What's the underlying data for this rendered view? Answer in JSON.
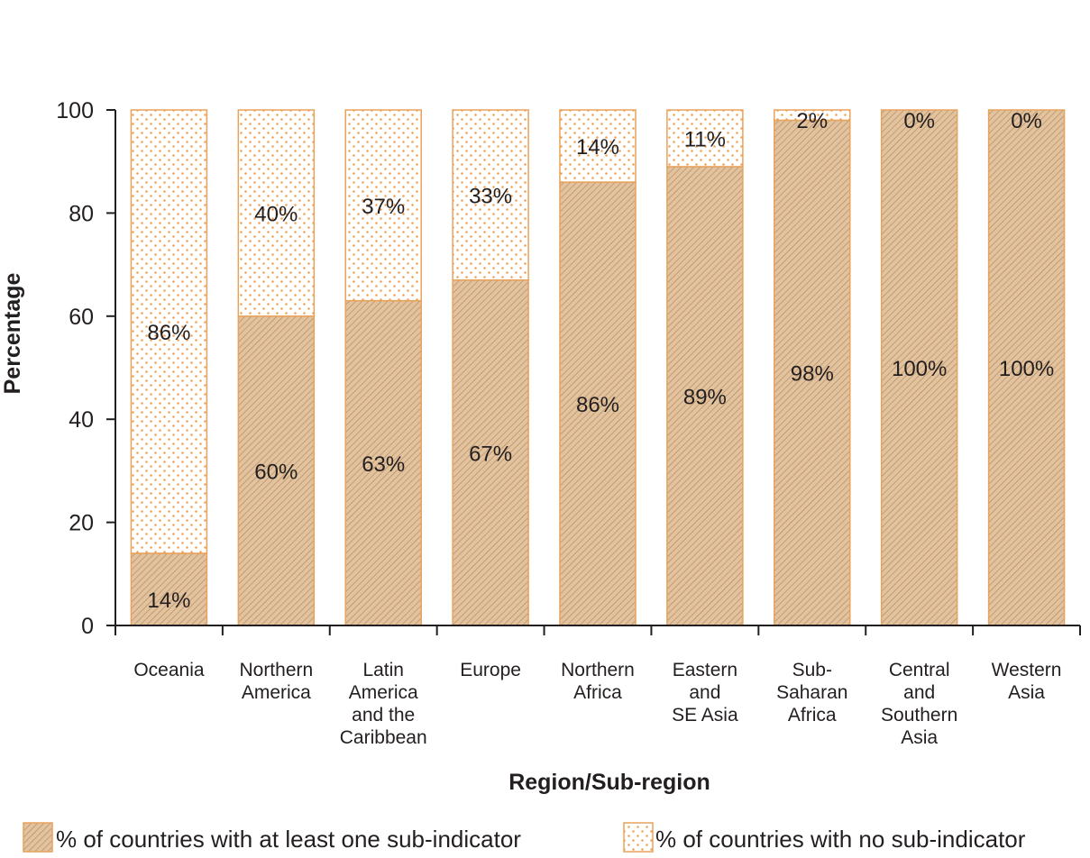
{
  "chart_data": {
    "type": "bar",
    "stacked": true,
    "title": "",
    "xlabel": "Region/Sub-region",
    "ylabel": "Percentage",
    "ylim": [
      0,
      100
    ],
    "yticks": [
      0,
      20,
      40,
      60,
      80,
      100
    ],
    "categories": [
      [
        "Oceania"
      ],
      [
        "Northern",
        "America"
      ],
      [
        "Latin",
        "America",
        "and the",
        "Caribbean"
      ],
      [
        "Europe"
      ],
      [
        "Northern",
        "Africa"
      ],
      [
        "Eastern",
        "and",
        "SE Asia"
      ],
      [
        "Sub-",
        "Saharan",
        "Africa"
      ],
      [
        "Central",
        "and",
        "Southern",
        "Asia"
      ],
      [
        "Western",
        "Asia"
      ]
    ],
    "series": [
      {
        "name": "% of countries with at least one sub-indicator",
        "values": [
          14,
          60,
          63,
          67,
          86,
          89,
          98,
          100,
          100
        ],
        "labels": [
          "14%",
          "60%",
          "63%",
          "67%",
          "86%",
          "89%",
          "98%",
          "100%",
          "100%"
        ],
        "pattern": "hatch",
        "color": "#d9b48f"
      },
      {
        "name": "% of countries with no sub-indicator",
        "values": [
          86,
          40,
          37,
          33,
          14,
          11,
          2,
          0,
          0
        ],
        "labels": [
          "86%",
          "40%",
          "37%",
          "33%",
          "14%",
          "11%",
          "2%",
          "0%",
          "0%"
        ],
        "pattern": "dots",
        "color": "#f2a65e"
      }
    ],
    "grid": false,
    "legend_position": "bottom"
  },
  "colors": {
    "outline": "#e8a25c",
    "axis": "#231f20"
  }
}
